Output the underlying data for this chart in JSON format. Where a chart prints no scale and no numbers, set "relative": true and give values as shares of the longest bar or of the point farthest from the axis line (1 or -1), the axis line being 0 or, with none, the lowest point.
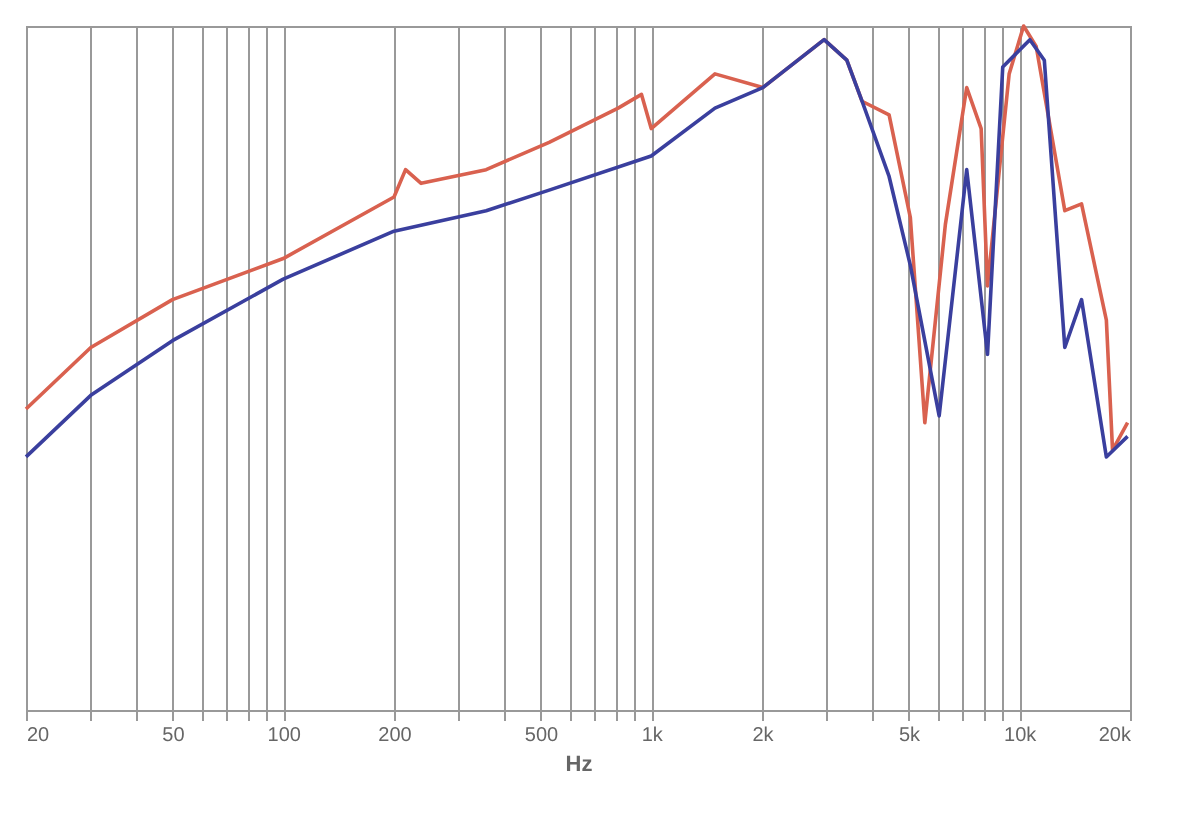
{
  "chart_data": {
    "type": "line",
    "xlabel": "Hz",
    "log": "x",
    "relative": true,
    "grid": "x",
    "line_style": "solid",
    "xlim": [
      20,
      20000
    ],
    "xticks": [
      20,
      {
        "value": 30,
        "label": null
      },
      {
        "value": 40,
        "label": null
      },
      50,
      {
        "value": 60,
        "label": null
      },
      {
        "value": 70,
        "label": null
      },
      {
        "value": 80,
        "label": null
      },
      {
        "value": 90,
        "label": null
      },
      100,
      200,
      {
        "value": 300,
        "label": null
      },
      {
        "value": 400,
        "label": null
      },
      500,
      {
        "value": 600,
        "label": null
      },
      {
        "value": 700,
        "label": null
      },
      {
        "value": 800,
        "label": null
      },
      {
        "value": 900,
        "label": null
      },
      {
        "value": 1000,
        "label": "1k"
      },
      {
        "value": 2000,
        "label": "2k"
      },
      {
        "value": 3000,
        "label": null
      },
      {
        "value": 4000,
        "label": null
      },
      {
        "value": 5000,
        "label": "5k"
      },
      {
        "value": 6000,
        "label": null
      },
      {
        "value": 7000,
        "label": null
      },
      {
        "value": 8000,
        "label": null
      },
      {
        "value": 9000,
        "label": null
      },
      {
        "value": 10000,
        "label": "10k"
      },
      {
        "value": 20000,
        "label": "20k"
      }
    ],
    "series": [
      {
        "color": "#d9614f",
        "x": [
          20,
          30,
          50,
          100,
          200,
          215,
          237,
          356,
          528,
          813,
          941,
          1000,
          1490,
          2010,
          2950,
          3400,
          3740,
          4430,
          5060,
          5540,
          6300,
          7200,
          7880,
          8200,
          9390,
          10280,
          11120,
          13300,
          14770,
          17250,
          17930,
          19700
        ],
        "values": [
          0.44,
          0.53,
          0.6,
          0.66,
          0.75,
          0.79,
          0.77,
          0.79,
          0.83,
          0.88,
          0.9,
          0.85,
          0.93,
          0.91,
          0.98,
          0.95,
          0.89,
          0.87,
          0.72,
          0.42,
          0.71,
          0.91,
          0.85,
          0.62,
          0.93,
          1.0,
          0.97,
          0.73,
          0.74,
          0.57,
          0.38,
          0.42
        ]
      },
      {
        "color": "#3a3f9e",
        "x": [
          20,
          30,
          50,
          100,
          200,
          356,
          528,
          1000,
          1490,
          2010,
          2950,
          3400,
          3740,
          4430,
          5060,
          6060,
          7200,
          8200,
          9020,
          10690,
          11700,
          13300,
          14770,
          17250,
          19700
        ],
        "values": [
          0.37,
          0.46,
          0.54,
          0.63,
          0.7,
          0.73,
          0.76,
          0.81,
          0.88,
          0.91,
          0.98,
          0.95,
          0.89,
          0.78,
          0.65,
          0.43,
          0.79,
          0.52,
          0.94,
          0.98,
          0.95,
          0.53,
          0.6,
          0.37,
          0.4
        ]
      }
    ]
  }
}
